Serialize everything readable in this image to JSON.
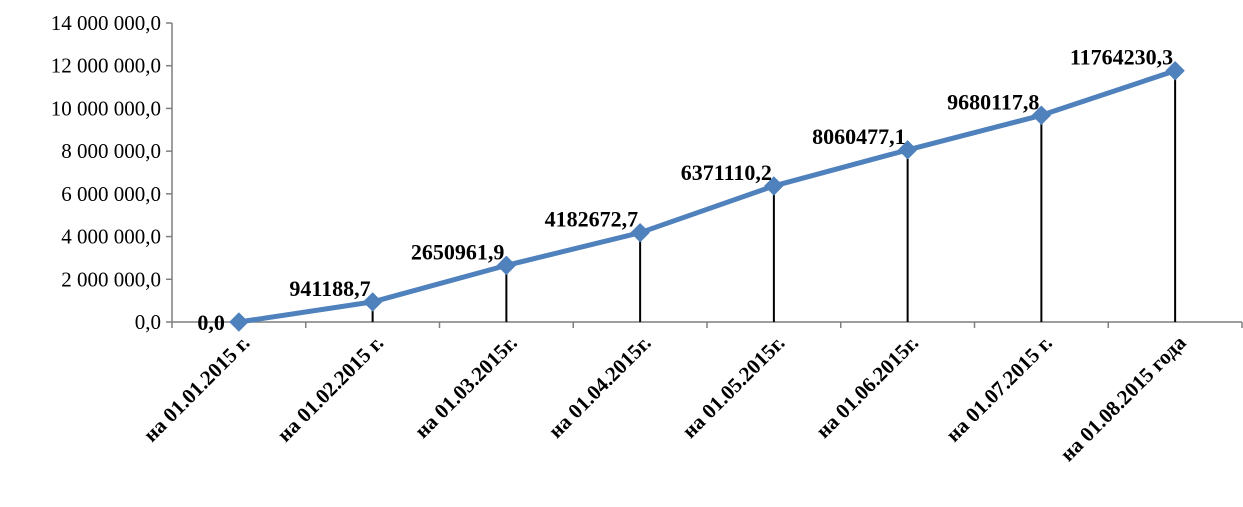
{
  "chart_data": {
    "type": "line",
    "categories": [
      "на 01.01.2015 г.",
      "на 01.02.2015 г.",
      "на 01.03.2015г.",
      "на 01.04.2015г.",
      "на 01.05.2015г.",
      "на 01.06.2015г.",
      "на 01.07.2015 г.",
      "на 01.08.2015 года"
    ],
    "values": [
      0.0,
      941188.7,
      2650961.9,
      4182672.7,
      6371110.2,
      8060477.1,
      9680117.8,
      11764230.3
    ],
    "data_labels": [
      "0,0",
      "941188,7",
      "2650961,9",
      "4182672,7",
      "6371110,2",
      "8060477,1",
      "9680117,8",
      "11764230,3"
    ],
    "yticks": [
      0,
      2000000,
      4000000,
      6000000,
      8000000,
      10000000,
      12000000,
      14000000
    ],
    "ytick_labels": [
      "0,0",
      "2 000 000,0",
      "4 000 000,0",
      "6 000 000,0",
      "8 000 000,0",
      "10 000 000,0",
      "12 000 000,0",
      "14 000 000,0"
    ],
    "ylim": [
      0,
      14000000
    ],
    "drop_lines": true,
    "marker": "diamond",
    "grid": false,
    "legend": "none",
    "title": "",
    "xlabel": "",
    "ylabel": "",
    "colors": {
      "line": "#4f81bd",
      "axis": "#7f7f7f",
      "drop_line": "#000000",
      "text": "#000000"
    }
  }
}
